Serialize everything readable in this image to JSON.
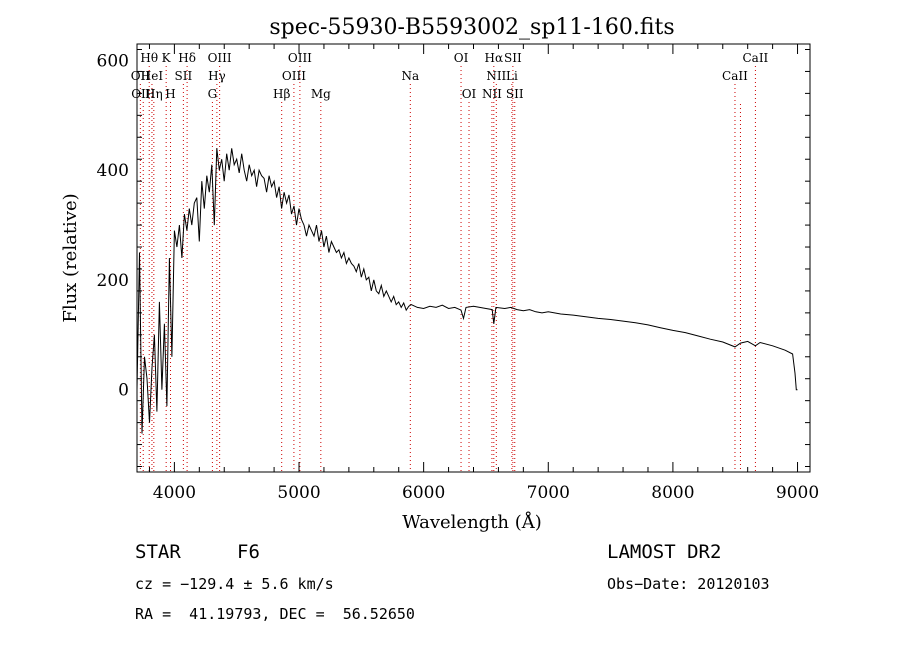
{
  "chart_data": {
    "type": "line",
    "title": "spec-55930-B5593002_sp11-160.fits",
    "xlabel": "Wavelength (Å)",
    "ylabel": "Flux (relative)",
    "xlim": [
      3700,
      9100
    ],
    "ylim": [
      -150,
      630
    ],
    "x_ticks": [
      4000,
      5000,
      6000,
      7000,
      8000,
      9000
    ],
    "y_ticks": [
      0,
      200,
      400,
      600
    ],
    "grid": false,
    "series": [
      {
        "x": [
          3700,
          3720,
          3740,
          3760,
          3780,
          3800,
          3820,
          3840,
          3860,
          3880,
          3900,
          3920,
          3940,
          3960,
          3980,
          4000,
          4020,
          4040,
          4060,
          4080,
          4100,
          4120,
          4140,
          4160,
          4180,
          4200,
          4220,
          4240,
          4260,
          4280,
          4300,
          4320,
          4340,
          4360,
          4380,
          4400,
          4420,
          4440,
          4460,
          4480,
          4500,
          4520,
          4540,
          4560,
          4580,
          4600,
          4620,
          4640,
          4660,
          4680,
          4700,
          4720,
          4740,
          4760,
          4780,
          4800,
          4820,
          4840,
          4860,
          4880,
          4900,
          4920,
          4940,
          4960,
          4980,
          5000,
          5020,
          5040,
          5060,
          5080,
          5100,
          5120,
          5140,
          5160,
          5180,
          5200,
          5220,
          5240,
          5260,
          5280,
          5300,
          5320,
          5340,
          5360,
          5380,
          5400,
          5420,
          5440,
          5460,
          5480,
          5500,
          5520,
          5540,
          5560,
          5580,
          5600,
          5620,
          5640,
          5660,
          5680,
          5700,
          5720,
          5740,
          5760,
          5780,
          5800,
          5820,
          5840,
          5860,
          5880,
          5900,
          5950,
          6000,
          6050,
          6100,
          6150,
          6200,
          6250,
          6300,
          6320,
          6340,
          6400,
          6450,
          6500,
          6550,
          6563,
          6580,
          6650,
          6700,
          6750,
          6800,
          6850,
          6900,
          6950,
          7000,
          7100,
          7200,
          7300,
          7400,
          7500,
          7600,
          7700,
          7800,
          7900,
          8000,
          8100,
          8200,
          8300,
          8400,
          8498,
          8542,
          8600,
          8662,
          8700,
          8800,
          8900,
          8960,
          8980,
          8990,
          9000
        ],
        "values": [
          0,
          250,
          -80,
          60,
          20,
          -60,
          40,
          100,
          -40,
          160,
          0,
          120,
          -30,
          240,
          60,
          290,
          260,
          300,
          240,
          320,
          290,
          330,
          300,
          340,
          350,
          270,
          380,
          330,
          390,
          360,
          410,
          300,
          440,
          400,
          420,
          380,
          430,
          400,
          440,
          410,
          420,
          395,
          430,
          400,
          380,
          410,
          390,
          400,
          370,
          400,
          390,
          385,
          360,
          390,
          370,
          380,
          350,
          370,
          330,
          360,
          340,
          355,
          320,
          335,
          300,
          330,
          310,
          300,
          280,
          300,
          290,
          280,
          300,
          270,
          290,
          260,
          280,
          250,
          270,
          260,
          250,
          255,
          240,
          250,
          230,
          240,
          230,
          225,
          215,
          230,
          205,
          220,
          200,
          205,
          180,
          200,
          180,
          175,
          190,
          170,
          180,
          170,
          160,
          170,
          155,
          160,
          150,
          158,
          145,
          152,
          155,
          150,
          148,
          152,
          150,
          154,
          148,
          150,
          145,
          130,
          150,
          152,
          150,
          148,
          146,
          120,
          150,
          148,
          150,
          146,
          144,
          146,
          142,
          140,
          142,
          138,
          136,
          133,
          130,
          128,
          125,
          122,
          118,
          113,
          108,
          104,
          98,
          92,
          87,
          78,
          85,
          88,
          80,
          86,
          80,
          72,
          65,
          30,
          0,
          0
        ]
      }
    ],
    "emission_lines": [
      {
        "label": "Hθ",
        "x": 3798,
        "row": 1
      },
      {
        "label": "OII",
        "x": 3727,
        "row": 2
      },
      {
        "label": "OIII",
        "x": 3750,
        "row": 3
      },
      {
        "label": "HeI",
        "x": 3820,
        "row": 2
      },
      {
        "label": "Hη",
        "x": 3835,
        "row": 3
      },
      {
        "label": "K",
        "x": 3934,
        "row": 1
      },
      {
        "label": "SII",
        "x": 4072,
        "row": 2
      },
      {
        "label": "H",
        "x": 3969,
        "row": 3
      },
      {
        "label": "Hδ",
        "x": 4102,
        "row": 1
      },
      {
        "label": "OIII",
        "x": 4363,
        "row": 1
      },
      {
        "label": "Hγ",
        "x": 4341,
        "row": 2
      },
      {
        "label": "G",
        "x": 4305,
        "row": 3
      },
      {
        "label": "OIII",
        "x": 5007,
        "row": 1
      },
      {
        "label": "OIII",
        "x": 4959,
        "row": 2
      },
      {
        "label": "Hβ",
        "x": 4861,
        "row": 3
      },
      {
        "label": "Mg",
        "x": 5175,
        "row": 3
      },
      {
        "label": "Na",
        "x": 5893,
        "row": 2
      },
      {
        "label": "OI",
        "x": 6300,
        "row": 1
      },
      {
        "label": "OI",
        "x": 6364,
        "row": 3
      },
      {
        "label": "Hα",
        "x": 6563,
        "row": 1
      },
      {
        "label": "SII",
        "x": 6716,
        "row": 1
      },
      {
        "label": "NII",
        "x": 6583,
        "row": 2
      },
      {
        "label": "NII",
        "x": 6548,
        "row": 3
      },
      {
        "label": "Li",
        "x": 6708,
        "row": 2
      },
      {
        "label": "SII",
        "x": 6731,
        "row": 3
      },
      {
        "label": "CaII",
        "x": 8662,
        "row": 1
      },
      {
        "label": "CaII",
        "x": 8498,
        "row": 2
      },
      {
        "label": "",
        "x": 8542,
        "row": 0
      }
    ],
    "colors": {
      "spectrum": "#000000",
      "line_markers": "#cc0000",
      "labels": "#000000"
    }
  },
  "info": {
    "object_class": "STAR",
    "subclass": "F6",
    "survey": "LAMOST DR2",
    "redshift": "cz = −129.4 ± 5.6 km/s",
    "obs_date": "Obs−Date: 20120103",
    "coords": "RA =  41.19793, DEC =  56.52650"
  }
}
